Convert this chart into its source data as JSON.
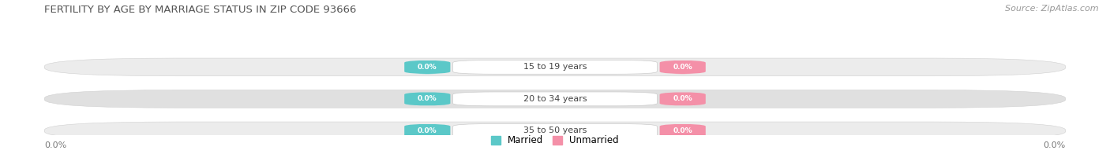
{
  "title": "FERTILITY BY AGE BY MARRIAGE STATUS IN ZIP CODE 93666",
  "source": "Source: ZipAtlas.com",
  "categories": [
    "15 to 19 years",
    "20 to 34 years",
    "35 to 50 years"
  ],
  "married_values": [
    0.0,
    0.0,
    0.0
  ],
  "unmarried_values": [
    0.0,
    0.0,
    0.0
  ],
  "married_color": "#5bc8c8",
  "unmarried_color": "#f490a8",
  "row_bg_light": "#ececec",
  "row_bg_dark": "#e0e0e0",
  "center_box_color": "#f5f5f5",
  "legend_married": "Married",
  "legend_unmarried": "Unmarried",
  "fig_width": 14.06,
  "fig_height": 1.96,
  "bg_color": "#ffffff",
  "title_fontsize": 9.5,
  "source_fontsize": 8,
  "bar_label": "0.0%",
  "axis_label": "0.0%"
}
